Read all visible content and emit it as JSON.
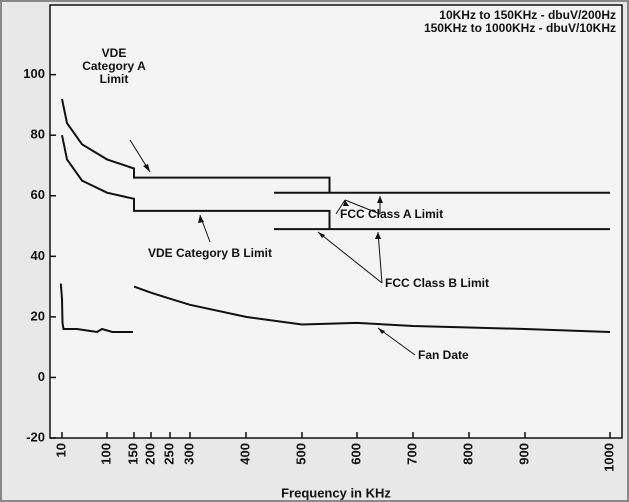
{
  "chart_data": {
    "type": "line",
    "notes": [
      "10KHz to  150KHz - dbuV/200Hz",
      "150KHz to 1000KHz - dbuV/10KHz"
    ],
    "x_label": "Frequency in KHz",
    "xlim": [
      0,
      1010
    ],
    "xticks": [
      10,
      100,
      150,
      200,
      250,
      300,
      400,
      500,
      600,
      700,
      800,
      900,
      1000
    ],
    "ylim": [
      -20,
      123
    ],
    "yticks": [
      100,
      80,
      60,
      40,
      20,
      0,
      -20
    ],
    "series": [
      {
        "name": "VDE Category A Limit",
        "color": "#111111",
        "x": [
          10,
          20,
          50,
          100,
          150,
          150,
          550,
          550
        ],
        "values": [
          92,
          84,
          77,
          72,
          69,
          66,
          66,
          61
        ]
      },
      {
        "name": "VDE Category B Limit",
        "color": "#111111",
        "x": [
          10,
          20,
          50,
          100,
          150,
          150,
          550,
          550
        ],
        "values": [
          80,
          72,
          65,
          61,
          59,
          55,
          55,
          49
        ]
      },
      {
        "name": "FCC Class A Limit",
        "color": "#111111",
        "x": [
          450,
          1000
        ],
        "values": [
          61,
          61
        ]
      },
      {
        "name": "FCC Class B Limit",
        "color": "#111111",
        "x": [
          450,
          1000
        ],
        "values": [
          49,
          49
        ]
      },
      {
        "name": "Fan Date",
        "color": "#111111",
        "x": [
          9,
          10,
          11,
          13,
          20,
          40,
          60,
          80,
          90,
          110,
          130,
          148,
          149,
          150,
          200,
          250,
          300,
          400,
          500,
          600,
          700,
          800,
          900,
          1000
        ],
        "values": [
          31,
          26,
          18,
          16,
          16,
          16,
          15.5,
          15,
          16,
          15,
          15,
          15,
          null,
          30,
          28,
          26,
          24,
          20,
          17.5,
          18,
          17,
          16.5,
          16,
          15
        ]
      }
    ]
  }
}
